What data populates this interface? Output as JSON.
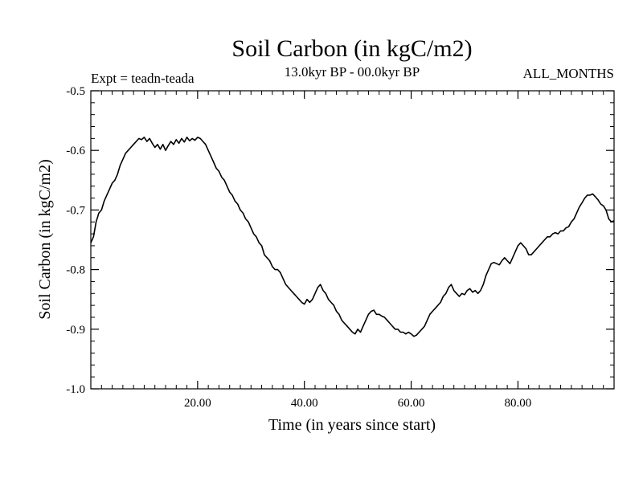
{
  "chart_data": {
    "type": "line",
    "title": "Soil Carbon (in kgC/m2)",
    "subtitle": "13.0kyr BP - 00.0kyr BP",
    "left_note": "Expt = teadn-teada",
    "right_note": "ALL_MONTHS",
    "xlabel": "Time (in years since start)",
    "ylabel": "Soil Carbon (in kgC/m2)",
    "xlim": [
      0,
      98
    ],
    "ylim": [
      -1.0,
      -0.5
    ],
    "x_ticks": [
      20,
      40,
      60,
      80
    ],
    "x_tick_labels": [
      "20.00",
      "40.00",
      "60.00",
      "80.00"
    ],
    "y_ticks": [
      -1.0,
      -0.9,
      -0.8,
      -0.7,
      -0.6,
      -0.5
    ],
    "y_tick_labels": [
      "-1.0",
      "-0.9",
      "-0.8",
      "-0.7",
      "-0.6",
      "-0.5"
    ],
    "grid": false,
    "line_color": "#000000",
    "series": [
      {
        "x": [
          0,
          0.5,
          1,
          1.5,
          2,
          2.5,
          3,
          3.5,
          4,
          4.5,
          5,
          5.5,
          6,
          6.5,
          7,
          7.5,
          8,
          8.5,
          9,
          9.5,
          10,
          10.5,
          11,
          11.5,
          12,
          12.5,
          13,
          13.5,
          14,
          14.5,
          15,
          15.5,
          16,
          16.5,
          17,
          17.5,
          18,
          18.5,
          19,
          19.5,
          20,
          20.5,
          21,
          21.5,
          22,
          22.5,
          23,
          23.5,
          24,
          24.5,
          25,
          25.5,
          26,
          26.5,
          27,
          27.5,
          28,
          28.5,
          29,
          29.5,
          30,
          30.5,
          31,
          31.5,
          32,
          32.5,
          33,
          33.5,
          34,
          34.5,
          35,
          35.5,
          36,
          36.5,
          37,
          37.5,
          38,
          38.5,
          39,
          39.5,
          40,
          40.5,
          41,
          41.5,
          42,
          42.5,
          43,
          43.5,
          44,
          44.5,
          45,
          45.5,
          46,
          46.5,
          47,
          47.5,
          48,
          48.5,
          49,
          49.5,
          50,
          50.5,
          51,
          51.5,
          52,
          52.5,
          53,
          53.5,
          54,
          54.5,
          55,
          55.5,
          56,
          56.5,
          57,
          57.5,
          58,
          58.5,
          59,
          59.5,
          60,
          60.5,
          61,
          61.5,
          62,
          62.5,
          63,
          63.5,
          64,
          64.5,
          65,
          65.5,
          66,
          66.5,
          67,
          67.5,
          68,
          68.5,
          69,
          69.5,
          70,
          70.5,
          71,
          71.5,
          72,
          72.5,
          73,
          73.5,
          74,
          74.5,
          75,
          75.5,
          76,
          76.5,
          77,
          77.5,
          78,
          78.5,
          79,
          79.5,
          80,
          80.5,
          81,
          81.5,
          82,
          82.5,
          83,
          83.5,
          84,
          84.5,
          85,
          85.5,
          86,
          86.5,
          87,
          87.5,
          88,
          88.5,
          89,
          89.5,
          90,
          90.5,
          91,
          91.5,
          92,
          92.5,
          93,
          93.5,
          94,
          94.5,
          95,
          95.5,
          96,
          96.5,
          97,
          97.5,
          98
        ],
        "values": [
          -0.755,
          -0.745,
          -0.72,
          -0.705,
          -0.7,
          -0.685,
          -0.675,
          -0.665,
          -0.655,
          -0.65,
          -0.64,
          -0.625,
          -0.615,
          -0.605,
          -0.6,
          -0.595,
          -0.59,
          -0.585,
          -0.58,
          -0.582,
          -0.578,
          -0.585,
          -0.58,
          -0.588,
          -0.595,
          -0.59,
          -0.598,
          -0.59,
          -0.6,
          -0.592,
          -0.585,
          -0.59,
          -0.582,
          -0.588,
          -0.58,
          -0.586,
          -0.578,
          -0.584,
          -0.58,
          -0.583,
          -0.578,
          -0.58,
          -0.585,
          -0.59,
          -0.6,
          -0.61,
          -0.62,
          -0.63,
          -0.635,
          -0.645,
          -0.65,
          -0.66,
          -0.67,
          -0.675,
          -0.685,
          -0.69,
          -0.7,
          -0.705,
          -0.715,
          -0.72,
          -0.73,
          -0.74,
          -0.745,
          -0.755,
          -0.76,
          -0.775,
          -0.78,
          -0.785,
          -0.795,
          -0.8,
          -0.8,
          -0.805,
          -0.815,
          -0.825,
          -0.83,
          -0.835,
          -0.84,
          -0.845,
          -0.85,
          -0.855,
          -0.858,
          -0.85,
          -0.855,
          -0.85,
          -0.84,
          -0.83,
          -0.825,
          -0.835,
          -0.84,
          -0.85,
          -0.855,
          -0.86,
          -0.87,
          -0.875,
          -0.885,
          -0.89,
          -0.895,
          -0.9,
          -0.905,
          -0.908,
          -0.9,
          -0.905,
          -0.895,
          -0.885,
          -0.875,
          -0.87,
          -0.868,
          -0.875,
          -0.875,
          -0.878,
          -0.88,
          -0.885,
          -0.89,
          -0.895,
          -0.9,
          -0.9,
          -0.905,
          -0.905,
          -0.908,
          -0.905,
          -0.908,
          -0.912,
          -0.91,
          -0.905,
          -0.9,
          -0.895,
          -0.885,
          -0.875,
          -0.87,
          -0.865,
          -0.86,
          -0.855,
          -0.845,
          -0.84,
          -0.83,
          -0.825,
          -0.835,
          -0.84,
          -0.845,
          -0.84,
          -0.842,
          -0.835,
          -0.832,
          -0.838,
          -0.835,
          -0.84,
          -0.835,
          -0.825,
          -0.81,
          -0.8,
          -0.79,
          -0.788,
          -0.79,
          -0.792,
          -0.785,
          -0.78,
          -0.785,
          -0.79,
          -0.78,
          -0.77,
          -0.76,
          -0.755,
          -0.76,
          -0.765,
          -0.775,
          -0.775,
          -0.77,
          -0.765,
          -0.76,
          -0.755,
          -0.75,
          -0.745,
          -0.745,
          -0.74,
          -0.738,
          -0.74,
          -0.735,
          -0.735,
          -0.73,
          -0.728,
          -0.72,
          -0.715,
          -0.705,
          -0.695,
          -0.688,
          -0.68,
          -0.675,
          -0.675,
          -0.673,
          -0.678,
          -0.683,
          -0.69,
          -0.693,
          -0.7,
          -0.715,
          -0.72,
          -0.718
        ]
      }
    ]
  }
}
